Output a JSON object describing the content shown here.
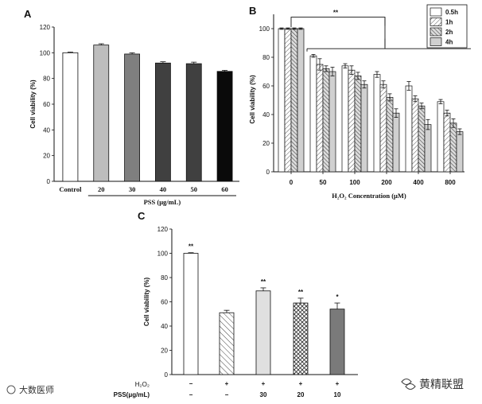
{
  "panels": {
    "a": "A",
    "b": "B",
    "c": "C"
  },
  "chart_data": [
    {
      "id": "A",
      "type": "bar",
      "title": "",
      "ylabel": "Cell viability (%)",
      "xlabel": "PSS (μg/mL)",
      "ylim": [
        0,
        120
      ],
      "yticks": [
        0,
        20,
        40,
        60,
        80,
        100,
        120
      ],
      "categories": [
        "Control",
        "20",
        "30",
        "40",
        "50",
        "60"
      ],
      "values": [
        100,
        106,
        99,
        92,
        91.5,
        85.5
      ],
      "errors": [
        0.5,
        1,
        1,
        1,
        1.2,
        0.8
      ],
      "colors": [
        "#ffffff",
        "#bdbdbd",
        "#7f7f7f",
        "#404040",
        "#404040",
        "#0a0a0a"
      ]
    },
    {
      "id": "B",
      "type": "bar",
      "ylabel": "Cell viability (%)",
      "xlabel": "H₂O₂ Concentration (μM)",
      "ylim": [
        0,
        110
      ],
      "yticks": [
        0,
        20,
        40,
        60,
        80,
        100
      ],
      "categories": [
        "0",
        "50",
        "100",
        "200",
        "400",
        "800"
      ],
      "series": [
        {
          "name": "0.5h",
          "pattern": "open",
          "values": [
            100,
            81,
            74,
            68,
            60,
            49
          ],
          "errors": [
            0.5,
            1,
            1.5,
            2,
            3,
            1.5
          ]
        },
        {
          "name": "1h",
          "pattern": "diag-light",
          "values": [
            100,
            75,
            71,
            61,
            51,
            41
          ],
          "errors": [
            0.5,
            4,
            3,
            2.5,
            2,
            2
          ]
        },
        {
          "name": "2h",
          "pattern": "diag-dark",
          "values": [
            100,
            72,
            67,
            52,
            46,
            34
          ],
          "errors": [
            0.5,
            2,
            2.5,
            2.5,
            2,
            3
          ]
        },
        {
          "name": "4h",
          "pattern": "grey",
          "values": [
            100,
            70,
            61,
            41,
            33,
            28
          ],
          "errors": [
            0.5,
            3,
            2.5,
            3,
            3.5,
            2
          ]
        }
      ],
      "annotation": "**"
    },
    {
      "id": "C",
      "type": "bar",
      "ylabel": "Cell viability (%)",
      "ylim": [
        0,
        120
      ],
      "yticks": [
        0,
        20,
        40,
        60,
        80,
        100,
        120
      ],
      "values": [
        100,
        51,
        69,
        59,
        54
      ],
      "errors": [
        0.5,
        2,
        2.5,
        4,
        5
      ],
      "significance": [
        "**",
        "",
        "**",
        "**",
        "*"
      ],
      "patterns": [
        "open",
        "diag",
        "light-grey",
        "crosshatch",
        "dark-grey"
      ],
      "row_labels": {
        "h2o2": "H₂O₂",
        "pss": "PSS(μg/mL)"
      },
      "h2o2_row": [
        "−",
        "+",
        "+",
        "+",
        "+"
      ],
      "pss_row": [
        "−",
        "−",
        "30",
        "20",
        "10"
      ]
    }
  ],
  "watermarks": {
    "left": "大数医师",
    "right": "黄精联盟"
  }
}
